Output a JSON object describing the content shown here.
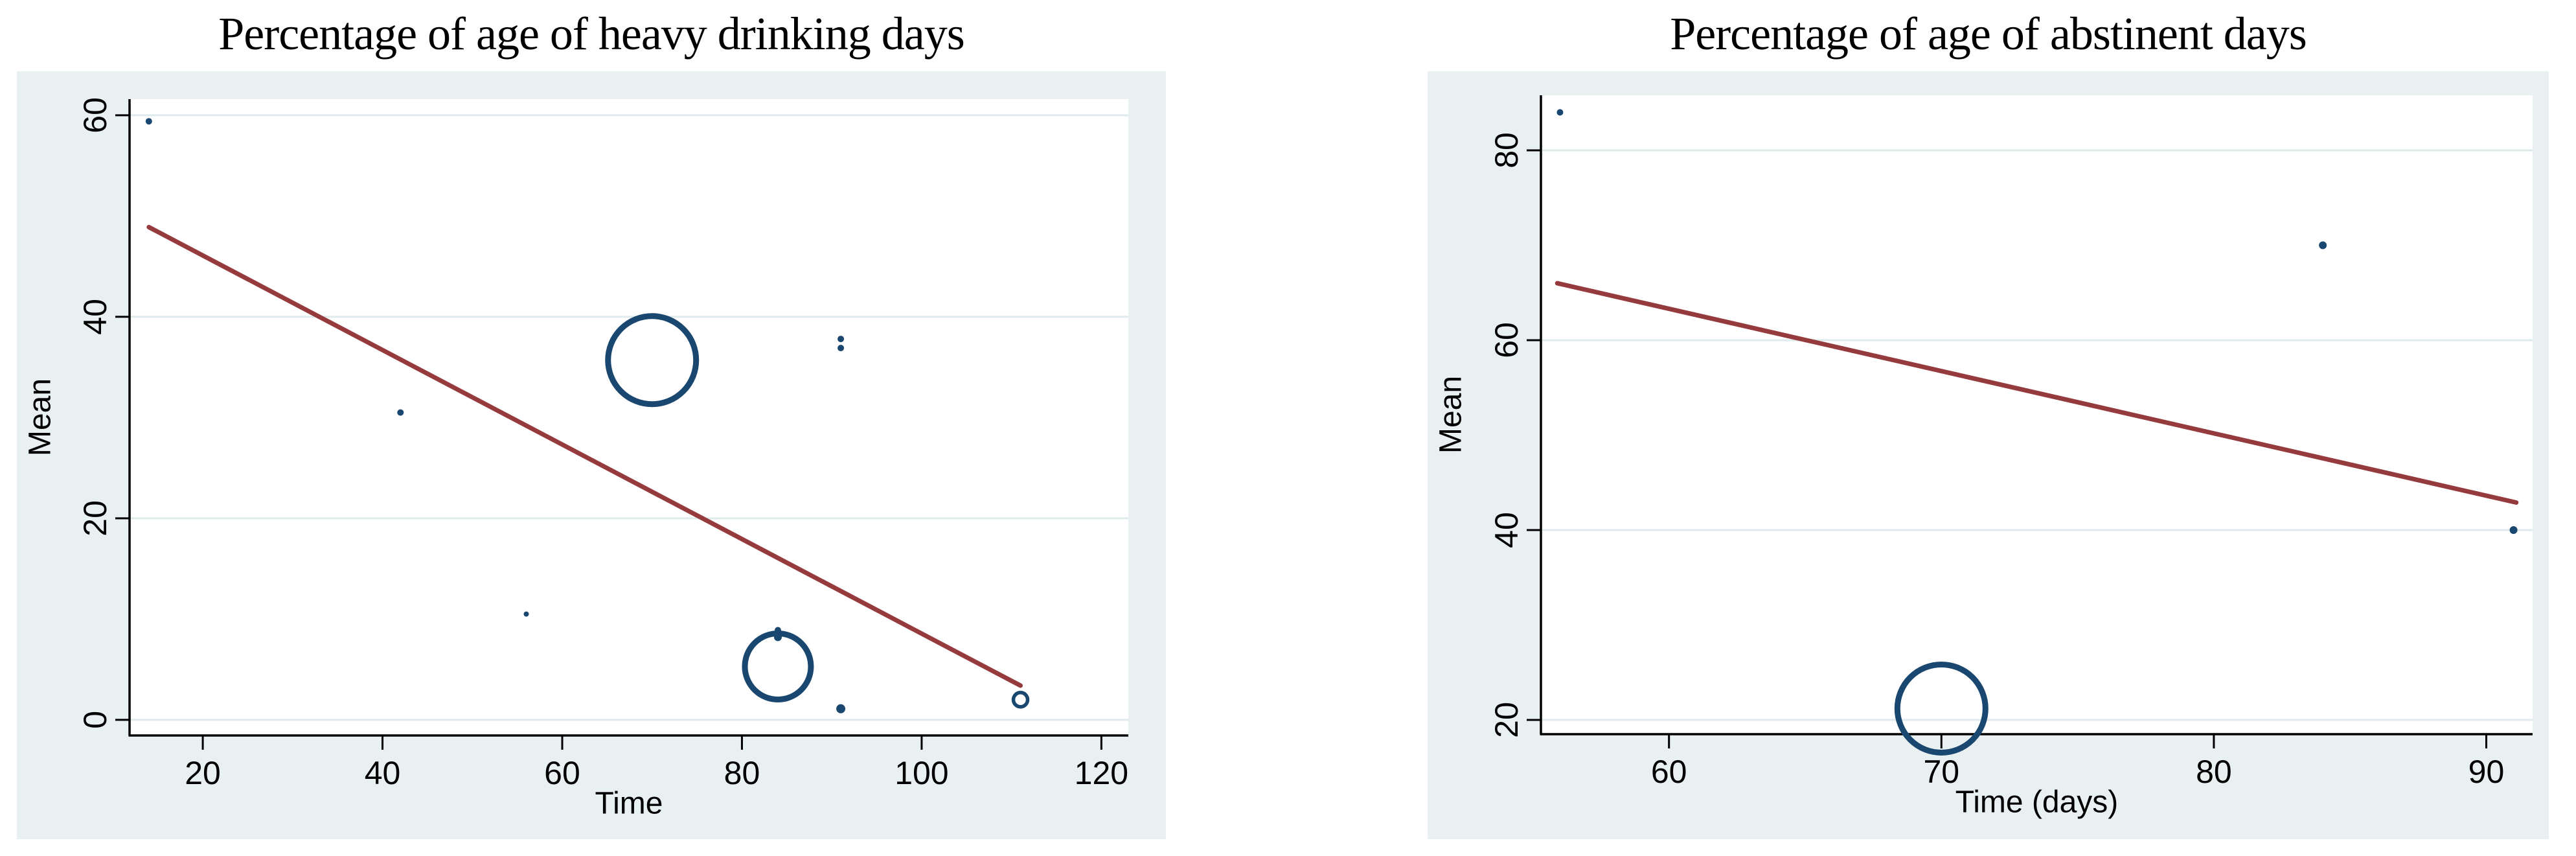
{
  "colors": {
    "page_bg": "#ffffff",
    "figure_bg": "#e9f0f1",
    "plot_bg": "#ffffff",
    "grid": "#dfeaec",
    "axis": "#000000",
    "text": "#000000",
    "marker": "#1a476f",
    "fit_line": "#963b3d"
  },
  "chart_data": [
    {
      "type": "scatter",
      "title": "Percentage of age of heavy drinking days",
      "xlabel": "Time",
      "ylabel": "Mean",
      "xlim": [
        11.85,
        123
      ],
      "ylim": [
        -1.55,
        61.6
      ],
      "xticks": [
        20,
        40,
        60,
        80,
        100,
        120
      ],
      "yticks": [
        0,
        20,
        40,
        60
      ],
      "grid": "horizontal",
      "legend": "none",
      "points": [
        {
          "x": 14,
          "y": 59.4,
          "r": 5,
          "style": "solid"
        },
        {
          "x": 42,
          "y": 30.5,
          "r": 5,
          "style": "solid"
        },
        {
          "x": 56,
          "y": 10.5,
          "r": 4,
          "style": "solid"
        },
        {
          "x": 70,
          "y": 35.7,
          "r": 68,
          "style": "open"
        },
        {
          "x": 84,
          "y": 8.9,
          "r": 5,
          "style": "solid"
        },
        {
          "x": 84,
          "y": 8.2,
          "r": 6,
          "style": "solid"
        },
        {
          "x": 84,
          "y": 5.3,
          "r": 51,
          "style": "open"
        },
        {
          "x": 91,
          "y": 37.8,
          "r": 5,
          "style": "solid"
        },
        {
          "x": 91,
          "y": 36.9,
          "r": 5,
          "style": "solid"
        },
        {
          "x": 91,
          "y": 1.1,
          "r": 7,
          "style": "solid"
        },
        {
          "x": 111,
          "y": 2.0,
          "r": 11,
          "style": "open"
        }
      ],
      "fit_line": {
        "x1": 14,
        "y1": 48.9,
        "x2": 111,
        "y2": 3.4
      }
    },
    {
      "type": "scatter",
      "title": "Percentage of age of abstinent days",
      "xlabel": "Time (days)",
      "ylabel": "Mean",
      "xlim": [
        55.3,
        91.7
      ],
      "ylim": [
        18.5,
        85.8
      ],
      "xticks": [
        60,
        70,
        80,
        90
      ],
      "yticks": [
        20,
        40,
        60,
        80
      ],
      "grid": "horizontal",
      "legend": "none",
      "points": [
        {
          "x": 56,
          "y": 84,
          "r": 5,
          "style": "solid"
        },
        {
          "x": 84,
          "y": 70,
          "r": 6,
          "style": "solid"
        },
        {
          "x": 70,
          "y": 21.2,
          "r": 68,
          "style": "open"
        },
        {
          "x": 91,
          "y": 40,
          "r": 6,
          "style": "solid"
        }
      ],
      "fit_line": {
        "x1": 55.9,
        "y1": 66,
        "x2": 91.1,
        "y2": 42.9
      }
    }
  ]
}
